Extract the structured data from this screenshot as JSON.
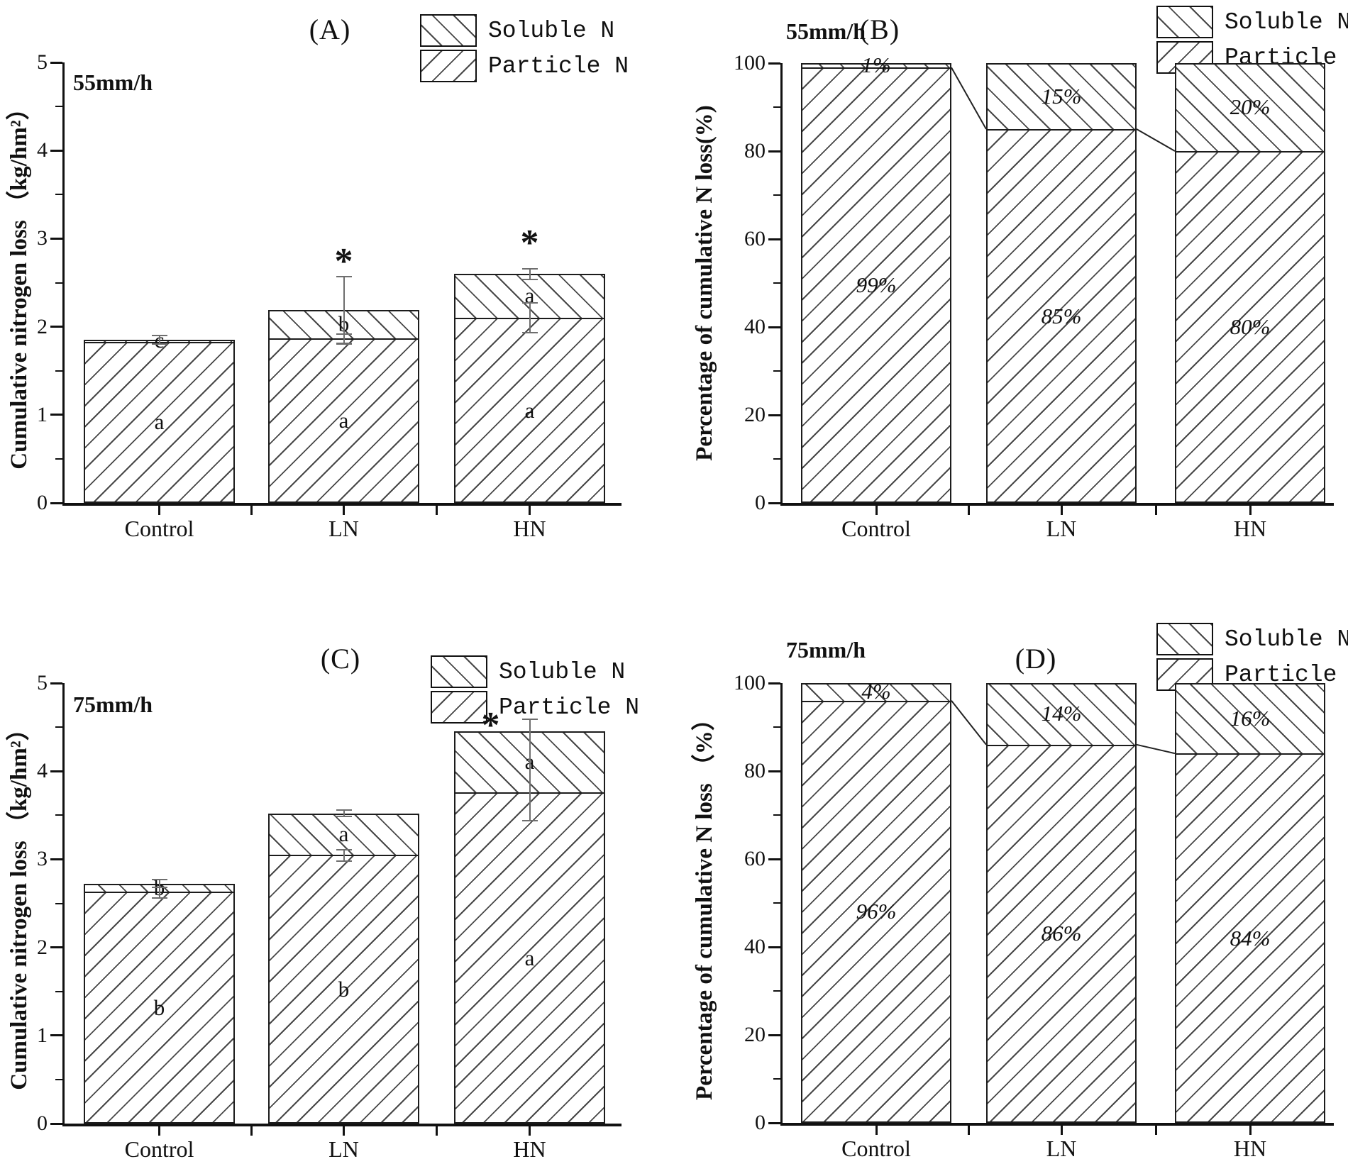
{
  "figure": {
    "legend": {
      "items": [
        {
          "label": "Soluble N",
          "hatch": "backslash"
        },
        {
          "label": "Particle N",
          "hatch": "slash"
        }
      ]
    }
  },
  "chart_data": [
    {
      "key": "A",
      "type": "stacked-bar",
      "panel_title": "(A)",
      "rain_label": "55mm/h",
      "ylabel": "Cumulative nitrogen loss （kg/hm²）",
      "categories": [
        "Control",
        "LN",
        "HN"
      ],
      "ylim": [
        0,
        5
      ],
      "yticks": [
        0,
        1,
        2,
        3,
        4,
        5
      ],
      "grid": false,
      "series": [
        {
          "name": "Particle N",
          "values": [
            1.83,
            1.87,
            2.1
          ]
        },
        {
          "name": "Soluble N",
          "values": [
            0.02,
            0.32,
            0.5
          ]
        }
      ],
      "totals": [
        1.85,
        2.19,
        2.6
      ],
      "sig_letters": {
        "soluble": [
          "c",
          "b",
          "a"
        ],
        "particle": [
          "a",
          "a",
          "a"
        ]
      },
      "asterisks": [
        {
          "cat": 1,
          "y": 2.74
        },
        {
          "cat": 2,
          "y": 2.95
        }
      ],
      "error_bars": [
        {
          "cat": 0,
          "lo": 1.8,
          "hi": 1.9
        },
        {
          "cat": 1,
          "lo": 1.81,
          "hi": 2.57
        },
        {
          "cat": 1,
          "lo": 1.8,
          "hi": 1.92
        },
        {
          "cat": 2,
          "lo": 2.54,
          "hi": 2.66
        },
        {
          "cat": 2,
          "lo": 1.93,
          "hi": 2.27
        }
      ],
      "connect": false
    },
    {
      "key": "B",
      "type": "stacked-bar",
      "panel_title": "(B)",
      "rain_label": "55mm/h",
      "ylabel": "Percentage of cumulative N loss(%)",
      "categories": [
        "Control",
        "LN",
        "HN"
      ],
      "ylim": [
        0,
        100
      ],
      "yticks": [
        0,
        20,
        40,
        60,
        80,
        100
      ],
      "grid": false,
      "series": [
        {
          "name": "Particle N",
          "values": [
            99,
            85,
            80
          ]
        },
        {
          "name": "Soluble N",
          "values": [
            1,
            15,
            20
          ]
        }
      ],
      "segment_labels": {
        "soluble": [
          "1%",
          "15%",
          "20%"
        ],
        "particle": [
          "99%",
          "85%",
          "80%"
        ]
      },
      "asterisks": [],
      "error_bars": [],
      "connect": true
    },
    {
      "key": "C",
      "type": "stacked-bar",
      "panel_title": "(C)",
      "rain_label": "75mm/h",
      "ylabel": "Cumulative nitrogen loss （kg/hm²）",
      "categories": [
        "Control",
        "LN",
        "HN"
      ],
      "ylim": [
        0,
        5
      ],
      "yticks": [
        0,
        1,
        2,
        3,
        4,
        5
      ],
      "grid": false,
      "series": [
        {
          "name": "Particle N",
          "values": [
            2.63,
            3.05,
            3.76
          ]
        },
        {
          "name": "Soluble N",
          "values": [
            0.09,
            0.47,
            0.69
          ]
        }
      ],
      "totals": [
        2.72,
        3.52,
        4.45
      ],
      "sig_letters": {
        "soluble": [
          "b",
          "a",
          "a"
        ],
        "particle": [
          "b",
          "b",
          "a"
        ]
      },
      "asterisks": [
        {
          "cat": 2,
          "y": 4.52,
          "dx": -55
        }
      ],
      "error_bars": [
        {
          "cat": 0,
          "lo": 2.68,
          "hi": 2.77
        },
        {
          "cat": 0,
          "lo": 2.56,
          "hi": 2.68
        },
        {
          "cat": 1,
          "lo": 3.49,
          "hi": 3.56
        },
        {
          "cat": 1,
          "lo": 2.98,
          "hi": 3.11
        },
        {
          "cat": 2,
          "lo": 3.44,
          "hi": 4.59
        }
      ],
      "connect": false
    },
    {
      "key": "D",
      "type": "stacked-bar",
      "panel_title": "(D)",
      "rain_label": "75mm/h",
      "ylabel": "Percentage of cumulative N loss （%）",
      "categories": [
        "Control",
        "LN",
        "HN"
      ],
      "ylim": [
        0,
        100
      ],
      "yticks": [
        0,
        20,
        40,
        60,
        80,
        100
      ],
      "grid": false,
      "series": [
        {
          "name": "Particle N",
          "values": [
            96,
            86,
            84
          ]
        },
        {
          "name": "Soluble N",
          "values": [
            4,
            14,
            16
          ]
        }
      ],
      "segment_labels": {
        "soluble": [
          "4%",
          "14%",
          "16%"
        ],
        "particle": [
          "96%",
          "86%",
          "84%"
        ]
      },
      "asterisks": [],
      "error_bars": [],
      "connect": true
    }
  ]
}
